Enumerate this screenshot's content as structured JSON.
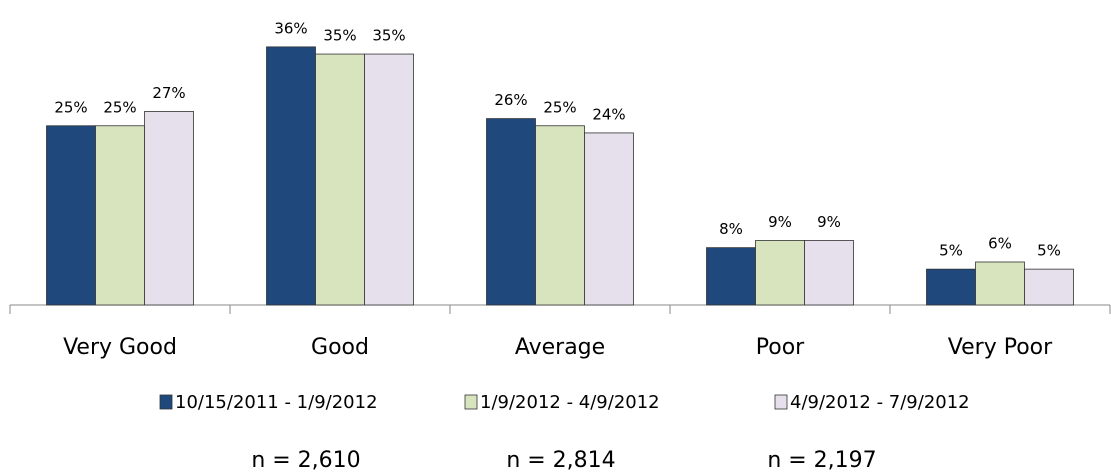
{
  "chart_data": {
    "type": "bar",
    "categories": [
      "Very Good",
      "Good",
      "Average",
      "Poor",
      "Very Poor"
    ],
    "series": [
      {
        "name": "10/15/2011 - 1/9/2012",
        "color": "#1f497d",
        "values": [
          25,
          36,
          26,
          8,
          5
        ],
        "value_labels": [
          "25%",
          "36%",
          "26%",
          "8%",
          "5%"
        ]
      },
      {
        "name": "1/9/2012 - 4/9/2012",
        "color": "#d7e4bd",
        "values": [
          25,
          35,
          25,
          9,
          6
        ],
        "value_labels": [
          "25%",
          "35%",
          "25%",
          "9%",
          "6%"
        ]
      },
      {
        "name": "4/9/2012 - 7/9/2012",
        "color": "#e6e0ec",
        "values": [
          27,
          35,
          24,
          9,
          5
        ],
        "value_labels": [
          "27%",
          "35%",
          "24%",
          "9%",
          "5%"
        ]
      }
    ],
    "notes": [
      "n = 2,610",
      "n = 2,814",
      "n = 2,197"
    ],
    "legend": "bottom"
  }
}
